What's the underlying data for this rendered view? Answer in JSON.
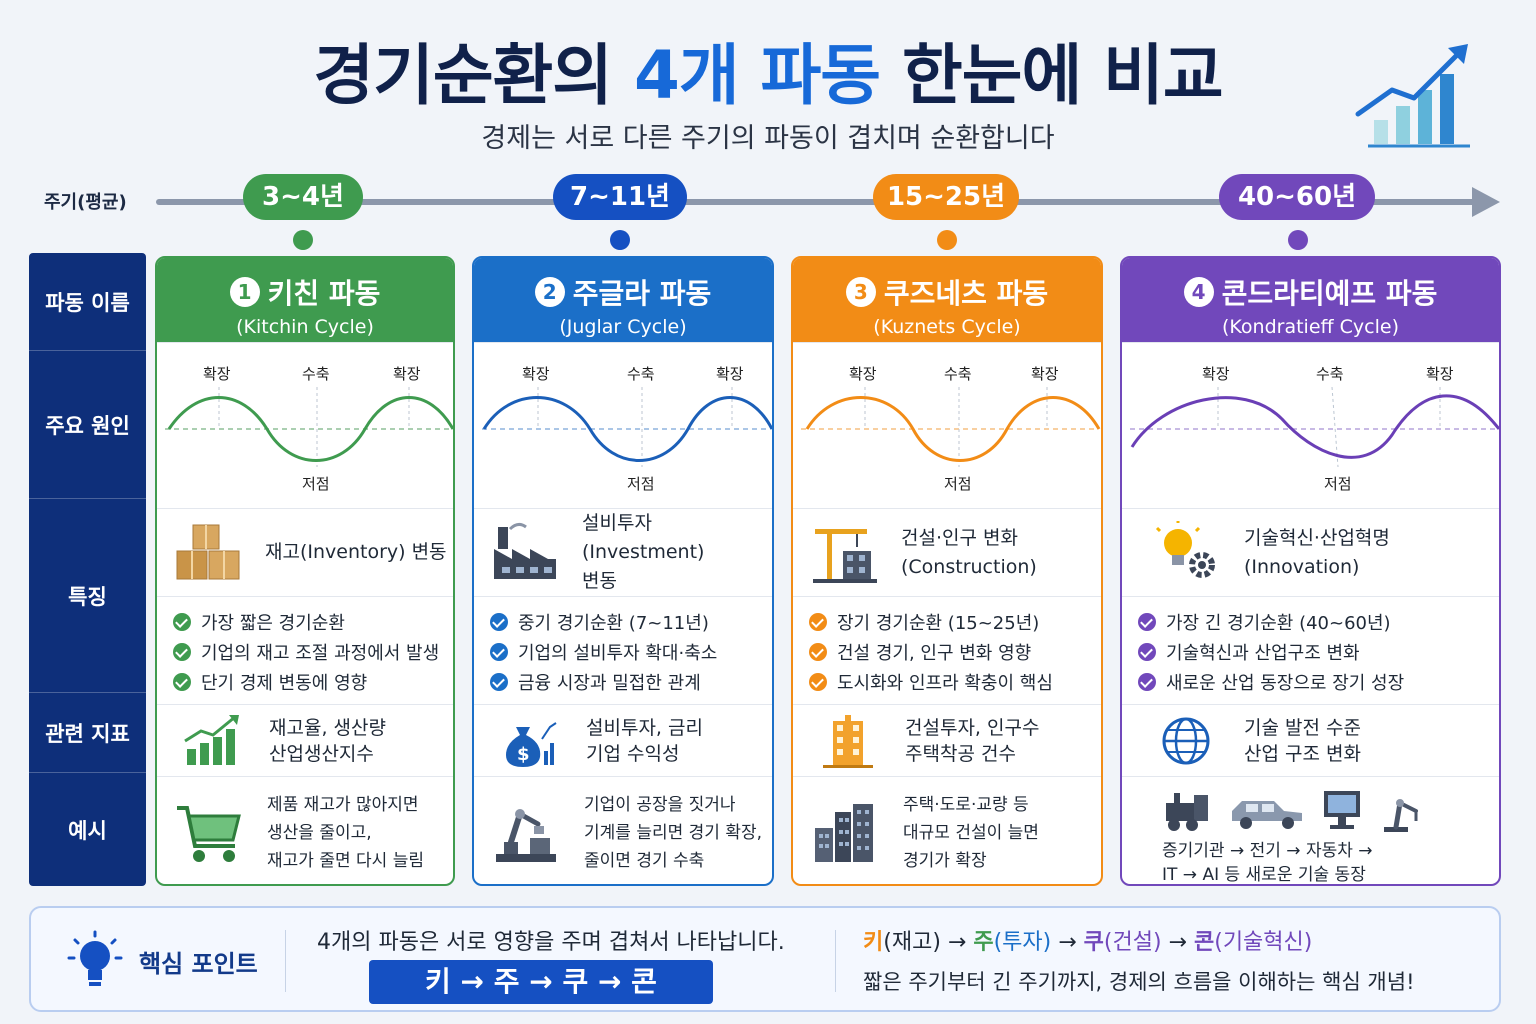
{
  "header": {
    "title_pre": "경기순환의 ",
    "title_hl": "4개 파동",
    "title_post": " 한눈에 비교",
    "subtitle": "경제는 서로 다른 주기의 파동이 겹치며 순환합니다"
  },
  "timeline": {
    "label": "주기(평균)",
    "periods": [
      "3~4년",
      "7~11년",
      "15~25년",
      "40~60년"
    ]
  },
  "row_labels": [
    "파동 이름",
    "주요 원인",
    "특징",
    "관련 지표",
    "예시"
  ],
  "wave_labels": {
    "expansion": "확장",
    "contraction": "수축",
    "trough": "저점"
  },
  "colors": {
    "kitchin": "#3f9b4f",
    "juglar": "#1b6fc8",
    "kuznets": "#f28c16",
    "kondratieff": "#7148bb",
    "navy": "#0e2f7a"
  },
  "cards": [
    {
      "num": "1",
      "name": "키친 파동",
      "en": "(Kitchin Cycle)",
      "feature": [
        "재고(Inventory) 변동"
      ],
      "points": [
        "가장 짧은 경기순환",
        "기업의 재고 조절 과정에서 발생",
        "단기 경제 변동에 영향"
      ],
      "indicators": [
        "재고율, 생산량",
        "산업생산지수"
      ],
      "example": [
        "제품 재고가 많아지면",
        "생산을 줄이고,",
        "재고가 줄면 다시 늘림"
      ],
      "icons": {
        "feature": "boxes-icon",
        "indicator": "bar-chart-up-icon",
        "example": "shopping-cart-icon"
      }
    },
    {
      "num": "2",
      "name": "주글라 파동",
      "en": "(Juglar Cycle)",
      "feature": [
        "설비투자(Investment)",
        "변동"
      ],
      "points": [
        "중기 경기순환 (7~11년)",
        "기업의 설비투자 확대·축소",
        "금융 시장과 밀접한 관계"
      ],
      "indicators": [
        "설비투자, 금리",
        "기업 수익성"
      ],
      "example": [
        "기업이 공장을 짓거나",
        "기계를 늘리면 경기 확장,",
        "줄이면 경기 수축"
      ],
      "icons": {
        "feature": "factory-icon",
        "indicator": "money-bag-chart-icon",
        "example": "robot-arm-icon"
      }
    },
    {
      "num": "3",
      "name": "쿠즈네츠 파동",
      "en": "(Kuznets Cycle)",
      "feature": [
        "건설·인구 변화",
        "(Construction)"
      ],
      "points": [
        "장기 경기순환 (15~25년)",
        "건설 경기, 인구 변화 영향",
        "도시화와 인프라 확충이 핵심"
      ],
      "indicators": [
        "건설투자, 인구수",
        "주택착공 건수"
      ],
      "example": [
        "주택·도로·교량 등",
        "대규모 건설이 늘면",
        "경기가 확장"
      ],
      "icons": {
        "feature": "crane-building-icon",
        "indicator": "apartment-icon",
        "example": "city-buildings-icon"
      }
    },
    {
      "num": "4",
      "name": "콘드라티예프 파동",
      "en": "(Kondratieff Cycle)",
      "feature": [
        "기술혁신·산업혁명",
        "(Innovation)"
      ],
      "points": [
        "가장 긴 경기순환 (40~60년)",
        "기술혁신과 산업구조 변화",
        "새로운 산업 동장으로 장기 성장"
      ],
      "indicators": [
        "기술 발전 수준",
        "산업 구조 변화"
      ],
      "example": [
        "증기기관 → 전기 → 자동차 →",
        "IT → AI 등 새로운 기술 동장"
      ],
      "icons": {
        "feature": "lightbulb-gear-icon",
        "indicator": "globe-icon",
        "example": "tech-evolution-icons"
      }
    }
  ],
  "bottom": {
    "label": "핵심 포인트",
    "message": "4개의 파동은 서로 영향을 주며 겹쳐서 나타납니다.",
    "sequence": "키 → 주 → 쿠 → 콘",
    "legend": [
      {
        "key": "키",
        "desc": "(재고)"
      },
      {
        "key": "주",
        "desc": "(투자)"
      },
      {
        "key": "쿠",
        "desc": "(건설)"
      },
      {
        "key": "콘",
        "desc": "(기술혁신)"
      }
    ],
    "arrow": " → ",
    "summary": "짧은 주기부터 긴 주기까지, 경제의 흐름을 이해하는 핵심 개념!"
  }
}
